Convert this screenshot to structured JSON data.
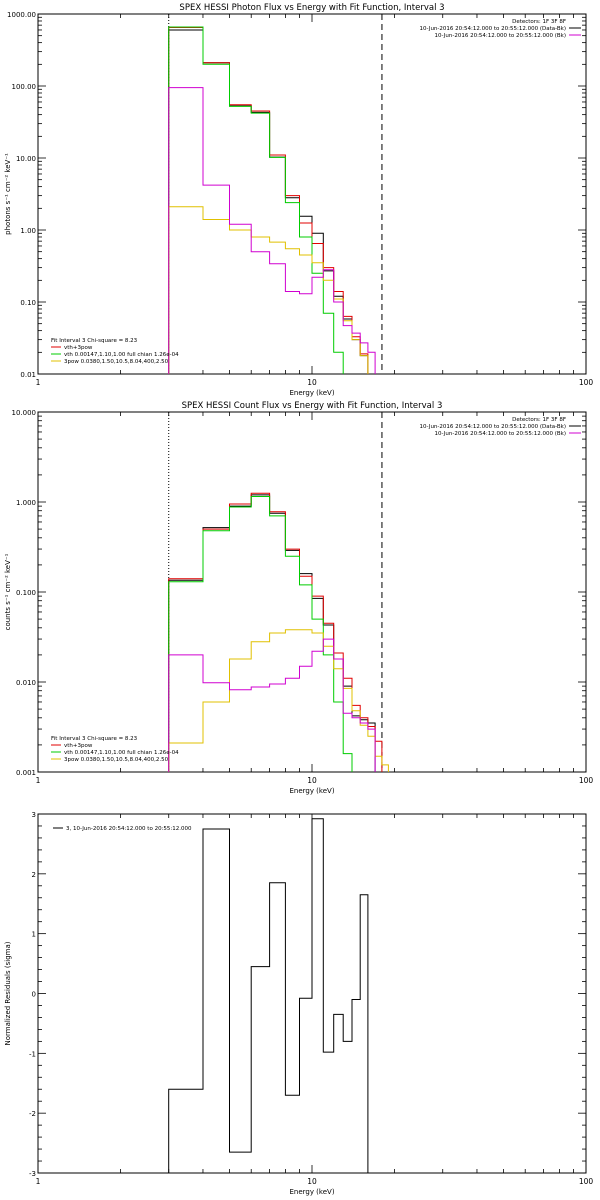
{
  "chart_data": [
    {
      "type": "line",
      "title": "SPEX HESSI Photon Flux vs Energy with Fit Function, Interval 3",
      "xlabel": "Energy (keV)",
      "ylabel": "photons s⁻¹ cm⁻² keV⁻¹",
      "xscale": "log",
      "yscale": "log",
      "xlim": [
        1,
        100
      ],
      "ylim": [
        0.01,
        1000
      ],
      "x_ticks": [
        1,
        10,
        100
      ],
      "x_tick_labels": [
        "1",
        "10",
        "100"
      ],
      "y_ticks": [
        0.01,
        0.1,
        1,
        10,
        100,
        1000
      ],
      "y_tick_labels": [
        "0.01",
        "0.10",
        "1.00",
        "10.00",
        "100.00",
        "1000.00"
      ],
      "legend_top_right": [
        "Detectors: 1F 3F 8F",
        "10-Jun-2016 20:54:12.000 to 20:55:12.000 (Data-Bk)",
        "10-Jun-2016 20:54:12.000 to 20:55:12.000 (Bk)"
      ],
      "legend_bottom_left": {
        "header": "Fit Interval 3   Chi-square = 8.23",
        "entries": [
          "vth+3pow",
          "vth 0.00147,1.10,1.00  full chian 1.26e-04",
          "3pow 0.0380,1.50,10.5,8.04,400,2.50"
        ]
      },
      "vlines": [
        {
          "x": 3.0,
          "style": "dotted"
        },
        {
          "x": 18.0,
          "style": "dashed"
        }
      ],
      "bin_edges": [
        3,
        4,
        5,
        6,
        7,
        8,
        9,
        10,
        11,
        12,
        13,
        14,
        15,
        16,
        17,
        18
      ],
      "series": [
        {
          "name": "Data-Bk",
          "color": "#000000",
          "values": [
            600,
            210,
            53,
            43,
            10.3,
            2.8,
            1.55,
            0.9,
            0.27,
            0.12,
            0.058,
            0.03,
            0.018,
            null,
            null
          ]
        },
        {
          "name": "vth+3pow",
          "color": "#e00000",
          "values": [
            650,
            210,
            55,
            45,
            11,
            3.0,
            1.25,
            0.65,
            0.3,
            0.14,
            0.063,
            0.033,
            0.019,
            null,
            null
          ]
        },
        {
          "name": "vth",
          "color": "#00cc00",
          "values": [
            660,
            200,
            52,
            42,
            10.2,
            2.4,
            0.8,
            0.25,
            0.07,
            0.02,
            null,
            null,
            null,
            null,
            null
          ]
        },
        {
          "name": "3pow",
          "color": "#e0c000",
          "values": [
            2.1,
            1.4,
            1.0,
            0.8,
            0.68,
            0.55,
            0.45,
            0.35,
            0.2,
            0.11,
            0.055,
            0.03,
            0.018,
            null,
            null
          ]
        },
        {
          "name": "Bk",
          "color": "#d000d0",
          "values": [
            95,
            4.2,
            1.2,
            0.5,
            0.34,
            0.14,
            0.13,
            0.22,
            0.28,
            0.1,
            0.047,
            0.037,
            0.027,
            0.02,
            null
          ]
        }
      ]
    },
    {
      "type": "line",
      "title": "SPEX HESSI Count Flux vs Energy with Fit Function, Interval 3",
      "xlabel": "Energy (keV)",
      "ylabel": "counts s⁻¹ cm⁻² keV⁻¹",
      "xscale": "log",
      "yscale": "log",
      "xlim": [
        1,
        100
      ],
      "ylim": [
        0.001,
        10
      ],
      "x_ticks": [
        1,
        10,
        100
      ],
      "x_tick_labels": [
        "1",
        "10",
        "100"
      ],
      "y_ticks": [
        0.001,
        0.01,
        0.1,
        1,
        10
      ],
      "y_tick_labels": [
        "0.001",
        "0.010",
        "0.100",
        "1.000",
        "10.000"
      ],
      "legend_top_right": [
        "Detectors: 1F 3F 8F",
        "10-Jun-2016 20:54:12.000 to 20:55:12.000 (Data-Bk)",
        "10-Jun-2016 20:54:12.000 to 20:55:12.000 (Bk)"
      ],
      "legend_bottom_left": {
        "header": "Fit Interval 3   Chi-square = 8.23",
        "entries": [
          "vth+3pow",
          "vth 0.00147,1.10,1.00  full chian 1.26e-04",
          "3pow 0.0380,1.50,10.5,8.04,400,2.50"
        ]
      },
      "vlines": [
        {
          "x": 3.0,
          "style": "dotted"
        },
        {
          "x": 18.0,
          "style": "dashed"
        }
      ],
      "bin_edges": [
        3,
        4,
        5,
        6,
        7,
        8,
        9,
        10,
        11,
        12,
        13,
        14,
        15,
        16,
        17,
        18,
        19
      ],
      "series": [
        {
          "name": "Data-Bk",
          "color": "#000000",
          "values": [
            0.135,
            0.52,
            0.9,
            1.2,
            0.75,
            0.29,
            0.16,
            0.085,
            0.043,
            0.018,
            0.009,
            0.0042,
            0.0038,
            0.0035,
            null,
            null
          ]
        },
        {
          "name": "vth+3pow",
          "color": "#e00000",
          "values": [
            0.14,
            0.5,
            0.95,
            1.25,
            0.78,
            0.3,
            0.15,
            0.09,
            0.045,
            0.021,
            0.011,
            0.0055,
            0.004,
            0.0032,
            0.0022,
            null
          ]
        },
        {
          "name": "vth",
          "color": "#00cc00",
          "values": [
            0.13,
            0.48,
            0.88,
            1.15,
            0.7,
            0.25,
            0.12,
            0.05,
            0.02,
            0.006,
            0.0016,
            null,
            null,
            null,
            null,
            null
          ]
        },
        {
          "name": "3pow",
          "color": "#e0c000",
          "values": [
            0.0021,
            0.006,
            0.018,
            0.028,
            0.035,
            0.038,
            0.038,
            0.035,
            0.025,
            0.014,
            0.0085,
            0.0048,
            0.0033,
            0.0025,
            0.0015,
            0.0012
          ]
        },
        {
          "name": "Bk",
          "color": "#d000d0",
          "values": [
            0.02,
            0.0098,
            0.0082,
            0.0088,
            0.0095,
            0.011,
            0.015,
            0.022,
            0.03,
            0.018,
            0.0045,
            0.004,
            0.0035,
            0.003,
            null,
            null
          ]
        }
      ]
    },
    {
      "type": "line",
      "title": "",
      "xlabel": "Energy (keV)",
      "ylabel": "Normalized Residuals (sigma)",
      "xscale": "log",
      "yscale": "linear",
      "xlim": [
        1,
        100
      ],
      "ylim": [
        -3,
        3
      ],
      "x_ticks": [
        1,
        10,
        100
      ],
      "x_tick_labels": [
        "1",
        "10",
        "100"
      ],
      "y_ticks": [
        -3,
        -2,
        -1,
        0,
        1,
        2,
        3
      ],
      "y_tick_labels": [
        "-3",
        "-2",
        "-1",
        "0",
        "1",
        "2",
        "3"
      ],
      "legend": [
        "3, 10-Jun-2016 20:54:12.000 to 20:55:12.000"
      ],
      "bin_edges": [
        3,
        4,
        5,
        6,
        7,
        8,
        9,
        10,
        11,
        12,
        13,
        14,
        15,
        16,
        17,
        18
      ],
      "series": [
        {
          "name": "3, 10-Jun-2016 20:54:12.000 to 20:55:12.000",
          "color": "#000000",
          "values": [
            -1.6,
            2.75,
            -2.65,
            0.45,
            1.85,
            -1.7,
            -0.08,
            2.92,
            -0.98,
            -0.35,
            -0.8,
            -0.1,
            1.65,
            null,
            null
          ]
        }
      ]
    }
  ]
}
